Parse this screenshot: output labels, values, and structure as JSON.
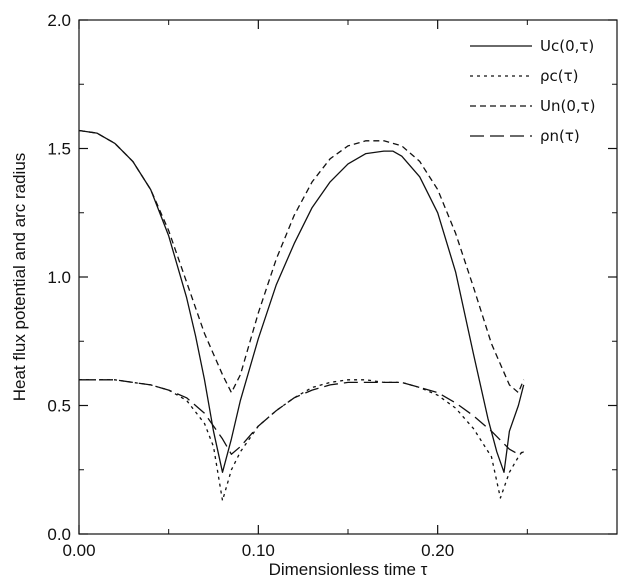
{
  "chart_data": {
    "type": "line",
    "title": "",
    "xlabel": "Dimensionless time τ",
    "ylabel": "Heat flux potential  and arc radius",
    "xlim": [
      0.0,
      0.3
    ],
    "ylim": [
      0.0,
      2.0
    ],
    "xticks": [
      0.0,
      0.1,
      0.2
    ],
    "xtick_labels": [
      "0.00",
      "0.10",
      "0.20"
    ],
    "yticks": [
      0.0,
      0.5,
      1.0,
      1.5,
      2.0
    ],
    "ytick_labels": [
      "0.0",
      "0.5",
      "1.0",
      "1.5",
      "2.0"
    ],
    "grid": false,
    "legend_position": "top-right",
    "series": [
      {
        "name": "Uc(0,τ)",
        "dash": "solid",
        "x": [
          0.0,
          0.01,
          0.02,
          0.03,
          0.04,
          0.05,
          0.06,
          0.065,
          0.07,
          0.075,
          0.08,
          0.085,
          0.09,
          0.1,
          0.11,
          0.12,
          0.13,
          0.14,
          0.15,
          0.16,
          0.17,
          0.175,
          0.18,
          0.19,
          0.2,
          0.21,
          0.22,
          0.228,
          0.233,
          0.237,
          0.24,
          0.245,
          0.248
        ],
        "y": [
          1.57,
          1.56,
          1.52,
          1.45,
          1.34,
          1.16,
          0.92,
          0.77,
          0.6,
          0.4,
          0.24,
          0.37,
          0.52,
          0.76,
          0.97,
          1.13,
          1.27,
          1.37,
          1.44,
          1.48,
          1.49,
          1.49,
          1.47,
          1.39,
          1.25,
          1.02,
          0.7,
          0.45,
          0.32,
          0.24,
          0.4,
          0.5,
          0.58
        ]
      },
      {
        "name": "ρc(τ)",
        "dash": "dotted",
        "x": [
          0.0,
          0.01,
          0.02,
          0.03,
          0.04,
          0.05,
          0.06,
          0.07,
          0.075,
          0.08,
          0.085,
          0.09,
          0.1,
          0.11,
          0.12,
          0.13,
          0.14,
          0.15,
          0.16,
          0.17,
          0.18,
          0.19,
          0.2,
          0.21,
          0.22,
          0.23,
          0.235,
          0.24,
          0.245,
          0.248
        ],
        "y": [
          0.6,
          0.6,
          0.6,
          0.59,
          0.58,
          0.56,
          0.52,
          0.43,
          0.34,
          0.13,
          0.25,
          0.32,
          0.42,
          0.48,
          0.53,
          0.57,
          0.59,
          0.6,
          0.6,
          0.59,
          0.59,
          0.57,
          0.54,
          0.49,
          0.41,
          0.3,
          0.14,
          0.24,
          0.3,
          0.33
        ]
      },
      {
        "name": "Un(0,τ)",
        "dash": "short-dash",
        "x": [
          0.0,
          0.01,
          0.02,
          0.03,
          0.04,
          0.05,
          0.06,
          0.07,
          0.08,
          0.085,
          0.09,
          0.1,
          0.11,
          0.12,
          0.13,
          0.14,
          0.15,
          0.16,
          0.17,
          0.18,
          0.19,
          0.2,
          0.21,
          0.22,
          0.23,
          0.24,
          0.245,
          0.248
        ],
        "y": [
          1.57,
          1.56,
          1.52,
          1.45,
          1.34,
          1.18,
          0.98,
          0.78,
          0.62,
          0.55,
          0.62,
          0.86,
          1.07,
          1.24,
          1.37,
          1.46,
          1.51,
          1.53,
          1.53,
          1.51,
          1.45,
          1.34,
          1.17,
          0.96,
          0.74,
          0.58,
          0.55,
          0.6
        ]
      },
      {
        "name": "ρn(τ)",
        "dash": "long-dash",
        "x": [
          0.0,
          0.01,
          0.02,
          0.03,
          0.04,
          0.05,
          0.06,
          0.07,
          0.08,
          0.085,
          0.09,
          0.1,
          0.11,
          0.12,
          0.13,
          0.14,
          0.15,
          0.16,
          0.17,
          0.18,
          0.19,
          0.2,
          0.21,
          0.22,
          0.23,
          0.24,
          0.245,
          0.248
        ],
        "y": [
          0.6,
          0.6,
          0.6,
          0.59,
          0.58,
          0.56,
          0.53,
          0.47,
          0.37,
          0.31,
          0.34,
          0.42,
          0.48,
          0.53,
          0.56,
          0.58,
          0.59,
          0.59,
          0.59,
          0.59,
          0.57,
          0.55,
          0.51,
          0.46,
          0.4,
          0.33,
          0.31,
          0.32
        ]
      }
    ]
  }
}
